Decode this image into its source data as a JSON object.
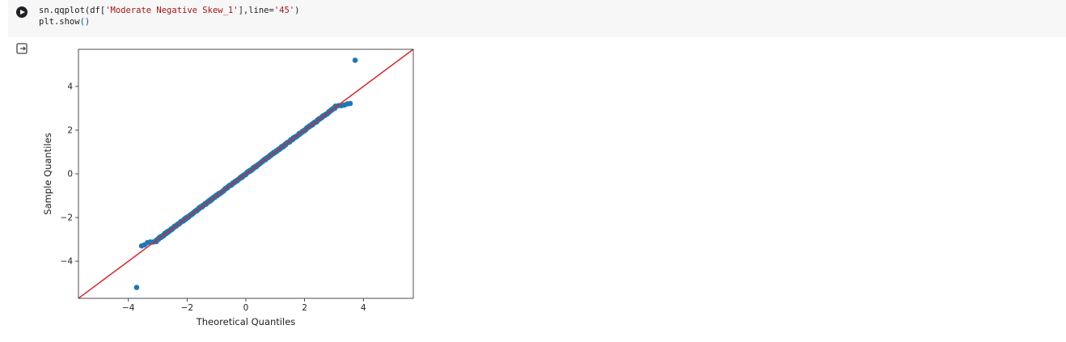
{
  "code": {
    "line1_prefix": "sn.qqplot(df[",
    "line1_str1": "'Moderate Negative Skew_1'",
    "line1_mid": "],line=",
    "line1_str2": "'45'",
    "line1_suffix": ")",
    "line2_prefix": "plt.show",
    "line2_call": "()"
  },
  "icons": {
    "run": "play-circle-icon",
    "output": "output-exit-icon"
  },
  "colors": {
    "points": "#1f77b4",
    "line": "#d62728"
  },
  "chart_data": {
    "type": "scatter",
    "xlabel": "Theoretical Quantiles",
    "ylabel": "Sample Quantiles",
    "xlim": [
      -5.7,
      5.7
    ],
    "ylim": [
      -5.7,
      5.7
    ],
    "xticks": [
      "−4",
      "−2",
      "0",
      "2",
      "4"
    ],
    "yticks": [
      "−4",
      "−2",
      "0",
      "2",
      "4"
    ],
    "reference_line": "45",
    "points": [
      [
        -3.72,
        -5.2
      ],
      [
        3.72,
        5.2
      ],
      [
        -3.55,
        -3.3
      ],
      [
        -3.45,
        -3.25
      ],
      [
        -3.35,
        -3.15
      ],
      [
        -3.25,
        -3.12
      ],
      [
        -3.15,
        -3.12
      ],
      [
        -3.05,
        -3.1
      ],
      [
        3.05,
        3.1
      ],
      [
        3.15,
        3.12
      ],
      [
        3.25,
        3.12
      ],
      [
        3.35,
        3.15
      ],
      [
        3.45,
        3.2
      ],
      [
        3.55,
        3.22
      ],
      [
        -3.0,
        -3.0
      ],
      [
        -2.5,
        -2.5
      ],
      [
        -2.0,
        -2.0
      ],
      [
        -1.5,
        -1.5
      ],
      [
        -1.0,
        -1.0
      ],
      [
        -0.5,
        -0.5
      ],
      [
        0,
        0
      ],
      [
        0.5,
        0.5
      ],
      [
        1.0,
        1.0
      ],
      [
        1.5,
        1.5
      ],
      [
        2.0,
        2.0
      ],
      [
        2.5,
        2.5
      ],
      [
        3.0,
        3.0
      ]
    ]
  }
}
